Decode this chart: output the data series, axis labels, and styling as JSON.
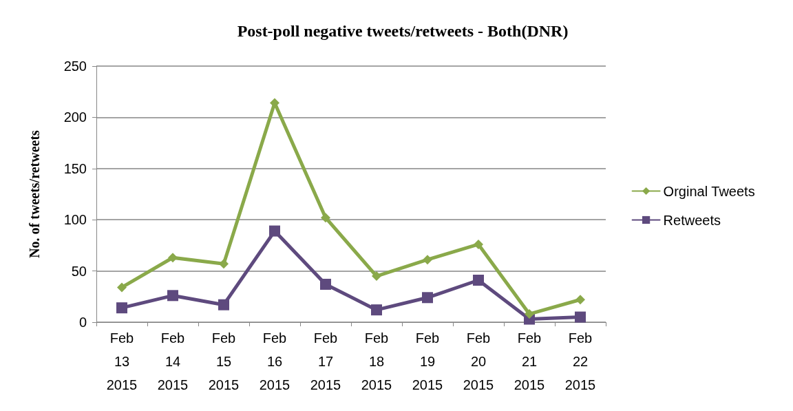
{
  "chart_data": {
    "type": "line",
    "title": "Post-poll negative tweets/retweets - Both(DNR)",
    "ylabel": "No. of tweets/retweets",
    "categories": [
      "Feb\n13\n2015",
      "Feb\n14\n2015",
      "Feb\n15\n2015",
      "Feb\n16\n2015",
      "Feb\n17\n2015",
      "Feb\n18\n2015",
      "Feb\n19\n2015",
      "Feb\n20\n2015",
      "Feb\n21\n2015",
      "Feb\n22\n2015"
    ],
    "series": [
      {
        "name": "Orginal Tweets",
        "color": "#8aa94a",
        "marker": "diamond",
        "values": [
          34,
          63,
          57,
          214,
          102,
          45,
          61,
          76,
          8,
          22
        ]
      },
      {
        "name": "Retweets",
        "color": "#5e4a7e",
        "marker": "square",
        "values": [
          14,
          26,
          17,
          89,
          37,
          12,
          24,
          41,
          3,
          5
        ]
      }
    ],
    "ylim": [
      0,
      250
    ],
    "yticks": [
      0,
      50,
      100,
      150,
      200,
      250
    ],
    "grid": "y",
    "legend": "right"
  }
}
